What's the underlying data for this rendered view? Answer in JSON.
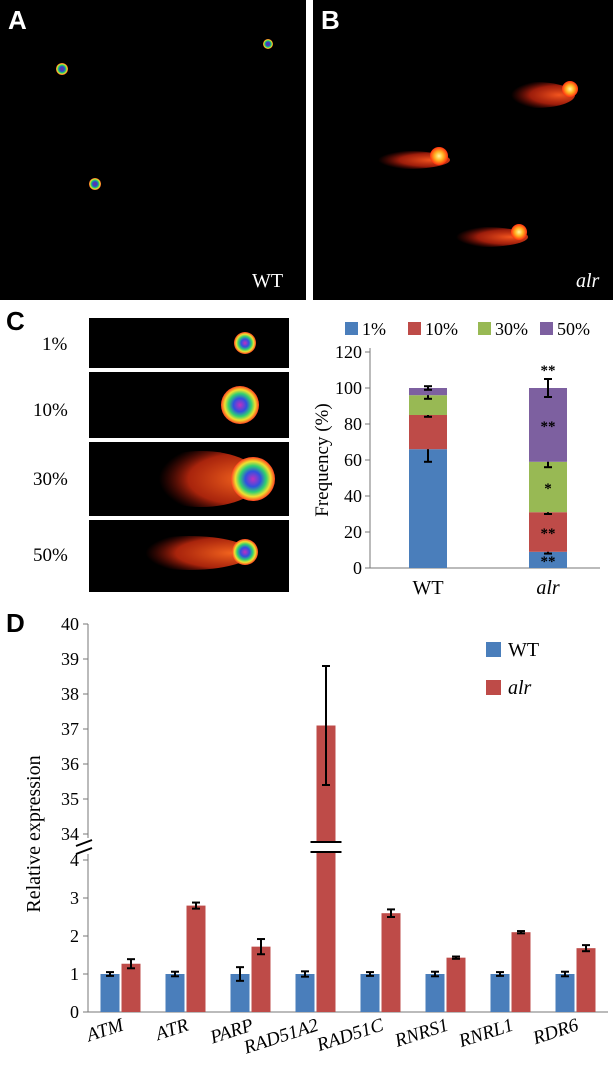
{
  "panels": {
    "a": {
      "letter": "A",
      "label": "WT"
    },
    "b": {
      "letter": "B",
      "label": "alr"
    },
    "c": {
      "letter": "C",
      "scale_labels": [
        "1%",
        "10%",
        "30%",
        "50%"
      ]
    },
    "d": {
      "letter": "D"
    }
  },
  "chart_data": [
    {
      "panel": "C",
      "type": "bar",
      "stacked": true,
      "categories": [
        "WT",
        "alr"
      ],
      "ylabel": "Frequency (%)",
      "ylim": [
        0,
        120
      ],
      "yticks": [
        0,
        20,
        40,
        60,
        80,
        100,
        120
      ],
      "legend_position": "top",
      "series": [
        {
          "name": "1%",
          "color": "#4A7EBB",
          "values": [
            66,
            9
          ],
          "errors": [
            7,
            1
          ],
          "annotations": [
            "",
            "**"
          ]
        },
        {
          "name": "10%",
          "color": "#BE4B48",
          "values": [
            19,
            22
          ],
          "errors": [
            1,
            1
          ],
          "annotations": [
            "",
            "**"
          ]
        },
        {
          "name": "30%",
          "color": "#98B954",
          "values": [
            11,
            28
          ],
          "errors": [
            2,
            3
          ],
          "annotations": [
            "",
            "*"
          ]
        },
        {
          "name": "50%",
          "color": "#7D60A0",
          "values": [
            4,
            41
          ],
          "errors": [
            1,
            5
          ],
          "annotations": [
            "",
            "**"
          ]
        }
      ],
      "top_annotations": [
        "",
        "**"
      ]
    },
    {
      "panel": "D",
      "type": "bar",
      "categories": [
        "ATM",
        "ATR",
        "PARP",
        "RAD51A2",
        "RAD51C",
        "RNRS1",
        "RNRL1",
        "RDR6"
      ],
      "ylabel": "Relative expression",
      "ylim": [
        0,
        40
      ],
      "broken_axis": {
        "lower": [
          0,
          4
        ],
        "upper": [
          34,
          40
        ]
      },
      "yticks": [
        0,
        1,
        2,
        3,
        4,
        34,
        35,
        36,
        37,
        38,
        39,
        40
      ],
      "legend_position": "top-right",
      "series": [
        {
          "name": "WT",
          "color": "#4A7EBB",
          "values": [
            1.0,
            1.0,
            1.0,
            1.0,
            1.0,
            1.0,
            1.0,
            1.0
          ],
          "errors": [
            0.05,
            0.06,
            0.18,
            0.07,
            0.05,
            0.06,
            0.05,
            0.06
          ]
        },
        {
          "name": "alr",
          "color": "#BE4B48",
          "values": [
            1.27,
            2.8,
            1.72,
            37.1,
            2.6,
            1.43,
            2.1,
            1.68
          ],
          "errors": [
            0.12,
            0.08,
            0.2,
            1.7,
            0.1,
            0.03,
            0.03,
            0.08
          ]
        }
      ]
    }
  ]
}
